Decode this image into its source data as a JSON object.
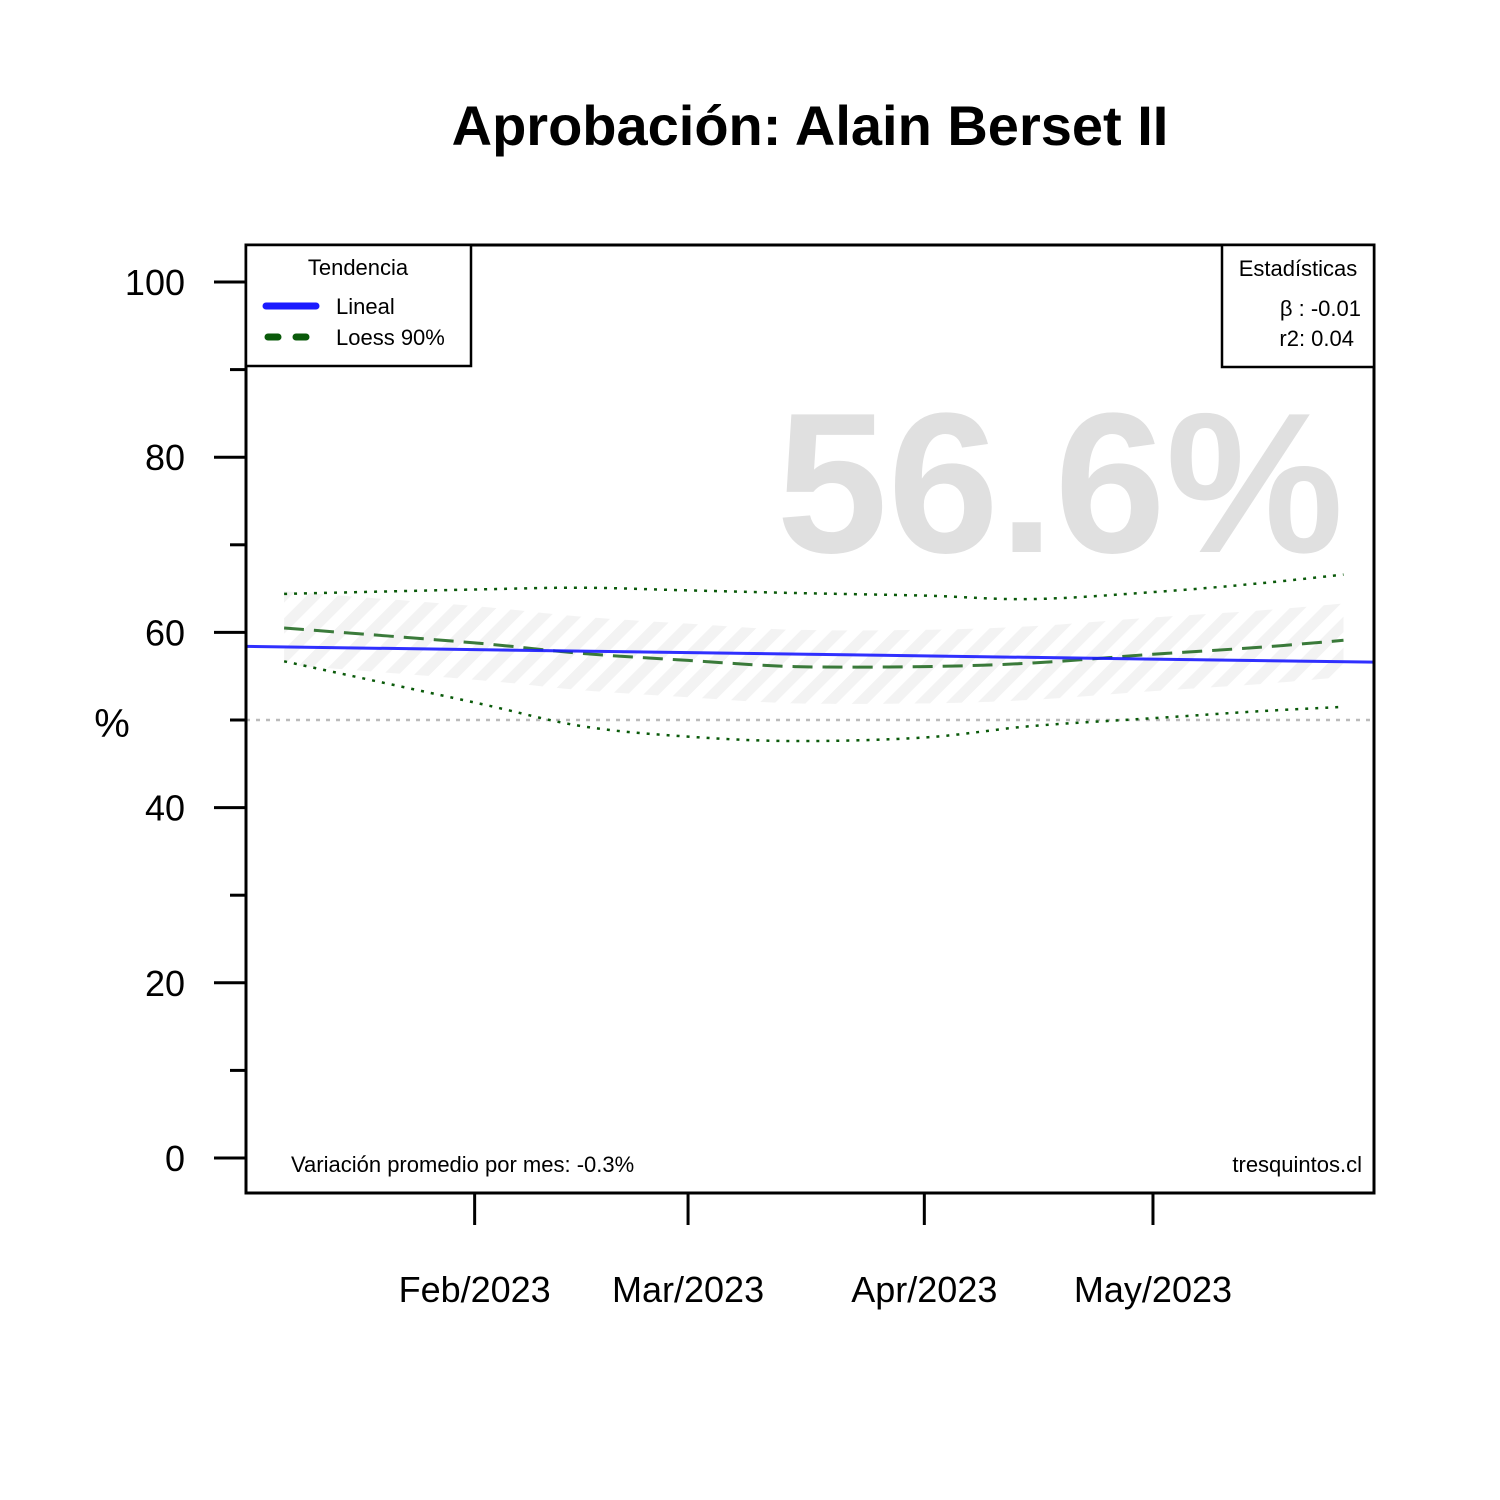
{
  "chart_data": {
    "type": "line",
    "title": "Aprobación: Alain Berset II",
    "ylabel": "%",
    "xlabel": "",
    "ylim": [
      0,
      100
    ],
    "y_ticks": [
      0,
      20,
      40,
      60,
      80,
      100
    ],
    "y_minor_ticks": [
      10,
      30,
      50,
      70,
      90
    ],
    "x_range": [
      "2023-01-02",
      "2023-05-30"
    ],
    "x_ticks": [
      {
        "date": "2023-02-01",
        "label": "Feb/2023"
      },
      {
        "date": "2023-03-01",
        "label": "Mar/2023"
      },
      {
        "date": "2023-04-01",
        "label": "Apr/2023"
      },
      {
        "date": "2023-05-01",
        "label": "May/2023"
      }
    ],
    "reference_line": 50,
    "highlight_value": "56.6%",
    "series": [
      {
        "name": "Lineal",
        "style": "solid",
        "color": "#1a1aff",
        "x": [
          "2023-01-02",
          "2023-05-30"
        ],
        "y": [
          58.4,
          56.6
        ]
      },
      {
        "name": "Loess 90%",
        "style": "dashed",
        "color": "#0a5a0a",
        "x": [
          "2023-01-07",
          "2023-02-01",
          "2023-02-15",
          "2023-03-01",
          "2023-03-15",
          "2023-04-01",
          "2023-04-15",
          "2023-05-01",
          "2023-05-15",
          "2023-05-26"
        ],
        "y": [
          60.5,
          58.8,
          57.6,
          56.8,
          56.1,
          56.1,
          56.5,
          57.5,
          58.3,
          59.1
        ],
        "lower": [
          56.7,
          52.0,
          49.3,
          48.1,
          47.6,
          48.0,
          49.3,
          50.2,
          51.0,
          51.5
        ],
        "upper": [
          64.4,
          64.9,
          65.1,
          64.8,
          64.5,
          64.2,
          63.8,
          64.6,
          65.6,
          66.6
        ]
      }
    ],
    "legend": {
      "title": "Tendencia",
      "position": "top-left",
      "entries": [
        "Lineal",
        "Loess 90%"
      ]
    },
    "stats_box": {
      "title": "Estadísticas",
      "position": "top-right",
      "beta": "β : -0.01",
      "r2": "r2: 0.04"
    },
    "footer_left": "Variación promedio por mes: -0.3%",
    "footer_right": "tresquintos.cl"
  },
  "colors": {
    "lineal": "#1a1aff",
    "loess": "#0a5a0a",
    "reference": "#bbbbbb",
    "watermark": "#e0e0e0",
    "band": "#f2f2f2"
  }
}
